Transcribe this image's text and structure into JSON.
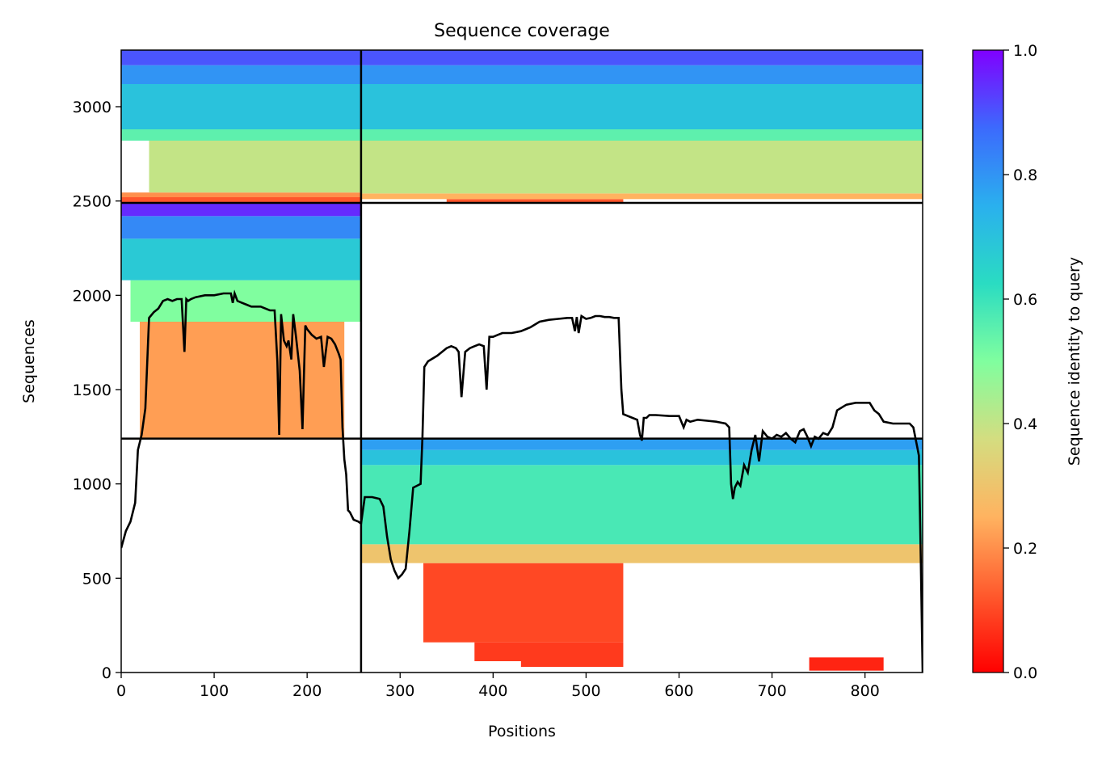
{
  "chart_data": {
    "type": "heatmap",
    "title": "Sequence coverage",
    "xlabel": "Positions",
    "ylabel": "Sequences",
    "xlim": [
      0,
      862
    ],
    "ylim": [
      0,
      3300
    ],
    "x_ticks": [
      0,
      100,
      200,
      300,
      400,
      500,
      600,
      700,
      800
    ],
    "y_ticks": [
      0,
      500,
      1000,
      1500,
      2000,
      2500,
      3000
    ],
    "colorbar": {
      "label": "Sequence identity to query",
      "range": [
        0.0,
        1.0
      ],
      "ticks": [
        "0.0",
        "0.2",
        "0.4",
        "0.6",
        "0.8",
        "1.0"
      ],
      "colormap": "rainbow_r"
    },
    "block_boundaries": {
      "positions": [
        258
      ],
      "sequences": [
        1240,
        2490
      ]
    },
    "blocks": [
      {
        "x": [
          0,
          258
        ],
        "y": [
          2490,
          3300
        ],
        "bands": [
          {
            "y": [
              2490,
              2520
            ],
            "x": [
              0,
              258
            ],
            "identity": 0.12
          },
          {
            "y": [
              2520,
              2545
            ],
            "x": [
              0,
              258
            ],
            "identity": 0.2
          },
          {
            "y": [
              2545,
              2820
            ],
            "x": [
              30,
              258
            ],
            "identity": 0.4
          },
          {
            "y": [
              2820,
              2880
            ],
            "x": [
              0,
              258
            ],
            "identity": 0.55
          },
          {
            "y": [
              2880,
              3120
            ],
            "x": [
              0,
              258
            ],
            "identity": 0.7
          },
          {
            "y": [
              3120,
              3220
            ],
            "x": [
              0,
              258
            ],
            "identity": 0.8
          },
          {
            "y": [
              3220,
              3300
            ],
            "x": [
              0,
              258
            ],
            "identity": 0.9
          }
        ]
      },
      {
        "x": [
          258,
          862
        ],
        "y": [
          2490,
          3300
        ],
        "bands": [
          {
            "y": [
              2490,
              2510
            ],
            "x": [
              350,
              540
            ],
            "identity": 0.12
          },
          {
            "y": [
              2510,
              2540
            ],
            "x": [
              258,
              862
            ],
            "identity": 0.25
          },
          {
            "y": [
              2540,
              2820
            ],
            "x": [
              258,
              862
            ],
            "identity": 0.4
          },
          {
            "y": [
              2820,
              2880
            ],
            "x": [
              258,
              862
            ],
            "identity": 0.55
          },
          {
            "y": [
              2880,
              3120
            ],
            "x": [
              258,
              862
            ],
            "identity": 0.7
          },
          {
            "y": [
              3120,
              3220
            ],
            "x": [
              258,
              862
            ],
            "identity": 0.8
          },
          {
            "y": [
              3220,
              3300
            ],
            "x": [
              258,
              862
            ],
            "identity": 0.9
          }
        ]
      },
      {
        "x": [
          0,
          258
        ],
        "y": [
          1240,
          2490
        ],
        "bands": [
          {
            "y": [
              1240,
              1860
            ],
            "x": [
              20,
              240
            ],
            "identity": 0.22
          },
          {
            "y": [
              1860,
              2080
            ],
            "x": [
              10,
              258
            ],
            "identity": 0.5
          },
          {
            "y": [
              2080,
              2300
            ],
            "x": [
              0,
              258
            ],
            "identity": 0.68
          },
          {
            "y": [
              2300,
              2420
            ],
            "x": [
              0,
              258
            ],
            "identity": 0.82
          },
          {
            "y": [
              2420,
              2490
            ],
            "x": [
              0,
              258
            ],
            "identity": 0.95
          }
        ]
      },
      {
        "x": [
          258,
          862
        ],
        "y": [
          0,
          1240
        ],
        "bands": [
          {
            "y": [
              30,
              60
            ],
            "x": [
              430,
              540
            ],
            "identity": 0.08
          },
          {
            "y": [
              60,
              160
            ],
            "x": [
              380,
              540
            ],
            "identity": 0.08
          },
          {
            "y": [
              160,
              580
            ],
            "x": [
              325,
              540
            ],
            "identity": 0.1
          },
          {
            "y": [
              10,
              80
            ],
            "x": [
              740,
              820
            ],
            "identity": 0.05
          },
          {
            "y": [
              580,
              680
            ],
            "x": [
              258,
              862
            ],
            "identity": 0.3
          },
          {
            "y": [
              680,
              1100
            ],
            "x": [
              258,
              862
            ],
            "identity": 0.58
          },
          {
            "y": [
              1100,
              1180
            ],
            "x": [
              258,
              862
            ],
            "identity": 0.7
          },
          {
            "y": [
              1180,
              1240
            ],
            "x": [
              258,
              862
            ],
            "identity": 0.78
          }
        ]
      }
    ],
    "coverage_line": {
      "x": [
        0,
        5,
        10,
        15,
        18,
        22,
        26,
        30,
        35,
        40,
        45,
        50,
        55,
        60,
        65,
        68,
        70,
        72,
        75,
        80,
        90,
        100,
        110,
        118,
        120,
        122,
        125,
        130,
        135,
        140,
        150,
        160,
        165,
        168,
        170,
        172,
        175,
        178,
        180,
        183,
        185,
        188,
        192,
        195,
        198,
        200,
        205,
        210,
        215,
        218,
        222,
        226,
        230,
        234,
        236,
        238,
        240,
        242,
        244,
        246,
        250,
        255,
        258,
        262,
        270,
        278,
        282,
        286,
        290,
        294,
        298,
        302,
        306,
        310,
        314,
        318,
        322,
        324,
        326,
        330,
        340,
        350,
        355,
        360,
        363,
        366,
        370,
        375,
        380,
        385,
        390,
        393,
        396,
        400,
        405,
        410,
        420,
        430,
        440,
        450,
        460,
        470,
        480,
        485,
        488,
        490,
        492,
        495,
        500,
        505,
        510,
        515,
        520,
        525,
        530,
        535,
        538,
        540,
        545,
        550,
        555,
        558,
        560,
        562,
        565,
        568,
        575,
        590,
        600,
        605,
        608,
        612,
        620,
        630,
        640,
        650,
        654,
        656,
        658,
        660,
        663,
        666,
        670,
        674,
        678,
        682,
        686,
        690,
        695,
        700,
        705,
        710,
        715,
        720,
        725,
        730,
        734,
        738,
        742,
        746,
        750,
        755,
        760,
        765,
        770,
        780,
        790,
        800,
        805,
        810,
        815,
        820,
        830,
        840,
        848,
        852,
        856,
        858,
        860,
        862
      ],
      "y": [
        660,
        750,
        800,
        900,
        1180,
        1260,
        1400,
        1880,
        1910,
        1930,
        1970,
        1980,
        1970,
        1980,
        1980,
        1700,
        1980,
        1970,
        1980,
        1990,
        2000,
        2000,
        2010,
        2010,
        1960,
        2010,
        1970,
        1960,
        1950,
        1940,
        1940,
        1920,
        1920,
        1650,
        1260,
        1900,
        1760,
        1730,
        1760,
        1660,
        1900,
        1780,
        1600,
        1290,
        1840,
        1820,
        1790,
        1770,
        1780,
        1620,
        1780,
        1770,
        1740,
        1690,
        1660,
        1300,
        1130,
        1050,
        860,
        850,
        810,
        800,
        790,
        930,
        930,
        920,
        880,
        720,
        600,
        540,
        500,
        520,
        550,
        750,
        980,
        990,
        1000,
        1250,
        1620,
        1650,
        1680,
        1720,
        1730,
        1720,
        1700,
        1460,
        1700,
        1720,
        1730,
        1740,
        1730,
        1500,
        1780,
        1780,
        1790,
        1800,
        1800,
        1810,
        1830,
        1860,
        1870,
        1875,
        1880,
        1880,
        1810,
        1885,
        1800,
        1890,
        1875,
        1880,
        1890,
        1890,
        1885,
        1885,
        1880,
        1880,
        1500,
        1370,
        1360,
        1350,
        1340,
        1260,
        1230,
        1350,
        1350,
        1365,
        1365,
        1360,
        1360,
        1300,
        1340,
        1330,
        1340,
        1335,
        1330,
        1320,
        1300,
        1000,
        920,
        980,
        1010,
        990,
        1100,
        1060,
        1180,
        1260,
        1120,
        1280,
        1250,
        1240,
        1260,
        1250,
        1270,
        1240,
        1220,
        1280,
        1290,
        1250,
        1200,
        1250,
        1240,
        1270,
        1260,
        1300,
        1390,
        1420,
        1430,
        1430,
        1430,
        1390,
        1370,
        1330,
        1320,
        1320,
        1320,
        1300,
        1200,
        1150,
        600,
        0
      ]
    }
  }
}
